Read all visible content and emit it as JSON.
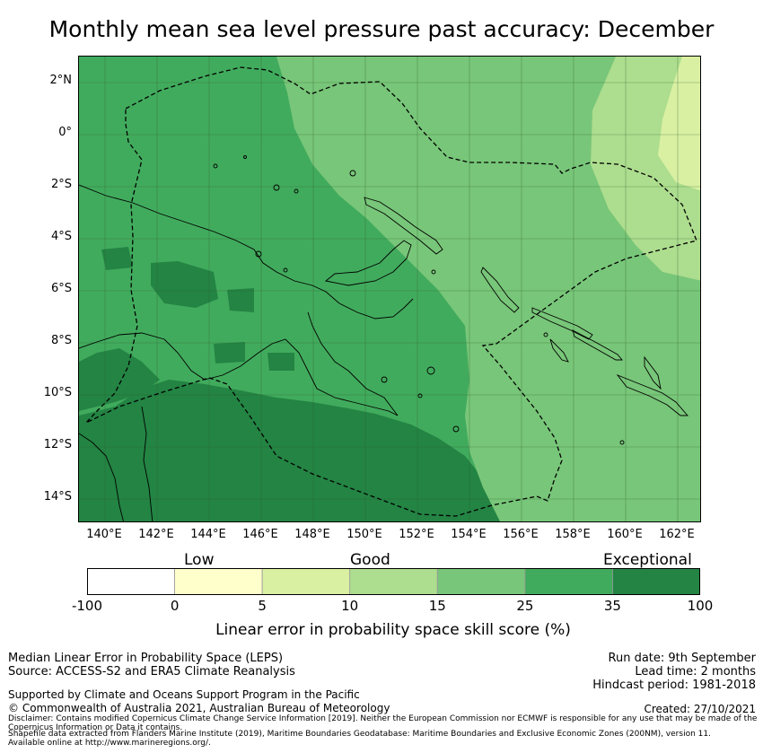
{
  "title": "Monthly mean sea level pressure past accuracy: December",
  "map": {
    "lat_labels": [
      "2°N",
      "0°",
      "2°S",
      "4°S",
      "6°S",
      "8°S",
      "10°S",
      "12°S",
      "14°S"
    ],
    "lon_labels": [
      "140°E",
      "142°E",
      "144°E",
      "146°E",
      "148°E",
      "150°E",
      "152°E",
      "154°E",
      "156°E",
      "158°E",
      "160°E",
      "162°E"
    ],
    "colors": {
      "exceptional_dark": "#238443",
      "exceptional_light": "#41ab5d",
      "good_high": "#78c679",
      "good_low": "#addd8e",
      "low": "#d9f0a3",
      "very_low": "#ffffcc",
      "none": "#ffffff"
    }
  },
  "colorbar": {
    "categories": [
      "Low",
      "Good",
      "Exceptional"
    ],
    "ticks": [
      "-100",
      "0",
      "5",
      "10",
      "15",
      "25",
      "35",
      "100"
    ],
    "segment_colors": [
      "#ffffff",
      "#ffffcc",
      "#d9f0a3",
      "#addd8e",
      "#78c679",
      "#41ab5d",
      "#238443"
    ],
    "title": "Linear error in probability space skill score (%)"
  },
  "footer": {
    "left_line1": "Median Linear Error in Probability Space (LEPS)",
    "left_line2": "Source: ACCESS-S2 and ERA5 Climate Reanalysis",
    "right_line1": "Run date: 9th September",
    "right_line2": "Lead time: 2 months",
    "right_line3": "Hindcast period: 1981-2018",
    "supported": "Supported by Climate and Oceans Support Program in the Pacific",
    "copyright": "© Commonwealth of Australia 2021, Australian Bureau of Meteorology",
    "created": "Created: 27/10/2021",
    "disclaimer": "Disclaimer: Contains modified Copernicus Climate Change Service Information [2019]. Neither the European Commission nor ECMWF is responsible for any use that may be made of the Copernicus Information or Data it contains.",
    "shapefile": "Shapefile data extracted from Flanders Marine Institute (2019), Maritime Boundaries Geodatabase: Maritime Boundaries and Exclusive Economic Zones (200NM), version 11. Available online at http://www.marineregions.org/."
  }
}
